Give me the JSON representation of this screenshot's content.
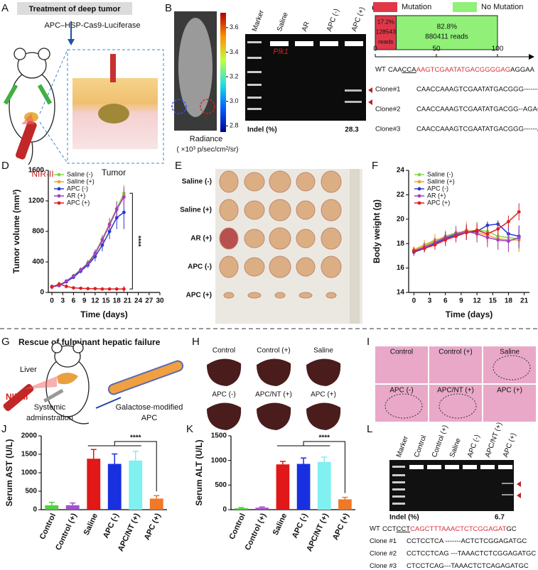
{
  "panel_labels": [
    "A",
    "B",
    "C",
    "D",
    "E",
    "F",
    "G",
    "H",
    "I",
    "J",
    "K",
    "L"
  ],
  "panel_a": {
    "title": "Treatment of deep tumor",
    "agent": "APC–HSP-Cas9-Luciferase",
    "tumor": "Tumor",
    "light": "NIR-II"
  },
  "panel_b": {
    "radiance": "Radiance",
    "radiance_unit": "( ×10³ p/sec/cm²/sr)",
    "colorbar": {
      "lim": [
        2.75,
        3.72
      ],
      "ticks": [
        3.6,
        3.4,
        3.2,
        {
          "value": 3,
          "label": "3.0"
        },
        2.8
      ]
    },
    "lanes": [
      "Marker",
      "Saline",
      "AR",
      "APC (-)",
      "APC (+)"
    ],
    "gene": "Plk1",
    "indel_label": "Indel (%)",
    "indel": "28.3"
  },
  "sequences_c": [
    {
      "label": "WT",
      "parts": [
        {
          "text": "CAA"
        },
        {
          "text": "CCA",
          "underline": true
        },
        {
          "text": "AAGTCGAATATGACGGGGAG",
          "color": "#d9303e"
        },
        {
          "text": "AGGAA"
        }
      ]
    },
    {
      "label": "Clone#1",
      "text": "CAACCAAAGTCGAATATGACGGG---------AA"
    },
    {
      "label": "Clone#2",
      "text": "CAACCAAAGTCGAATATGACGG--AGAGGAA"
    },
    {
      "label": "Clone#3",
      "text": "CAACCAAAGTCGAATATGACGGG------AAGAA"
    }
  ],
  "panel_e": {
    "rows": [
      "Saline (-)",
      "Saline (+)",
      "AR (+)",
      "APC (-)",
      "APC (+)"
    ]
  },
  "panel_g": {
    "title": "Rescue of fulminant hepatic failure",
    "organ": "Liver",
    "light": "NIR-II",
    "route": [
      "Systemic",
      "adminstration"
    ],
    "agent": [
      "Galactose-modified",
      "APC"
    ]
  },
  "panel_h": {
    "groups": [
      "Control",
      "Control (+)",
      "Saline",
      "APC (-)",
      "APC/NT (+)",
      "APC (+)"
    ]
  },
  "panel_i": {
    "groups": [
      "Control",
      "Control (+)",
      "Saline",
      "APC (-)",
      "APC/NT (+)",
      "APC (+)"
    ]
  },
  "panel_l": {
    "lanes": [
      "Marker",
      "Control",
      "Control (+)",
      "Saline",
      "APC (-)",
      "APC/NT (+)",
      "APC (+)"
    ],
    "indel_label": "Indel (%)",
    "indel": "6.7",
    "sequences": [
      {
        "label": "WT",
        "parts": [
          {
            "text": "CCT"
          },
          {
            "text": "CCT",
            "underline": true
          },
          {
            "text": "CAGCTTTAAACTCTCGGAGAT",
            "color": "#d9303e"
          },
          {
            "text": "GC"
          }
        ]
      },
      {
        "label": "Clone #1",
        "text": "CCTCCTCA -------ACTCTCGGAGATGC"
      },
      {
        "label": "Clone #2",
        "text": "CCTCCTCAG ---TAAACTCTCGGAGATGC"
      },
      {
        "label": "Clone #3",
        "text": "CTCCTCAG---TAAACTCTCAGAGATGC"
      }
    ]
  },
  "chart_data": [
    {
      "type": "stacked-bar",
      "xlim": [
        0,
        100
      ],
      "xticks": [
        0,
        50,
        100
      ],
      "count_unit": "reads",
      "series": [
        {
          "name": "Mutation",
          "color": "#e03848",
          "values": [
            17.2
          ],
          "value_labels": [
            "17.2%"
          ],
          "count": "128543"
        },
        {
          "name": "No Mutation",
          "color": "#90f078",
          "values": [
            82.8
          ],
          "value_labels": [
            "82.8%"
          ],
          "count": "880411"
        }
      ]
    },
    {
      "type": "line",
      "ylabel": "Tumor volume (mm³)",
      "xlabel": "Time (days)",
      "annotation": "****",
      "xlim": [
        -1,
        30
      ],
      "xticks": [
        0,
        3,
        6,
        9,
        12,
        15,
        18,
        21,
        24,
        27,
        30
      ],
      "ylim": [
        0,
        1600
      ],
      "yticks": [
        0,
        400,
        800,
        1200,
        1600
      ],
      "x": [
        0,
        2,
        4,
        6,
        8,
        10,
        12,
        14,
        16,
        18,
        20
      ],
      "series": [
        {
          "name": "Saline (-)",
          "color": "#80d848",
          "values": [
            80,
            95,
            150,
            220,
            300,
            390,
            520,
            700,
            900,
            1100,
            1300
          ],
          "errors": [
            10,
            15,
            20,
            25,
            30,
            40,
            50,
            60,
            80,
            100,
            110
          ]
        },
        {
          "name": "Saline (+)",
          "color": "#f0a030",
          "values": [
            80,
            95,
            145,
            210,
            290,
            370,
            500,
            680,
            880,
            1080,
            1270
          ],
          "errors": [
            10,
            15,
            20,
            25,
            30,
            40,
            50,
            70,
            90,
            100,
            120
          ]
        },
        {
          "name": "APC (-)",
          "color": "#2838d0",
          "values": [
            75,
            90,
            140,
            200,
            280,
            360,
            470,
            620,
            800,
            980,
            1050
          ],
          "errors": [
            10,
            15,
            20,
            25,
            30,
            40,
            60,
            80,
            100,
            150,
            220
          ]
        },
        {
          "name": "AR (+)",
          "color": "#a040c8",
          "values": [
            80,
            95,
            150,
            215,
            295,
            380,
            510,
            690,
            890,
            1090,
            1250
          ],
          "errors": [
            10,
            15,
            20,
            25,
            30,
            40,
            50,
            60,
            80,
            100,
            130
          ]
        },
        {
          "name": "APC (+)",
          "color": "#e02020",
          "values": [
            70,
            110,
            80,
            60,
            55,
            50,
            50,
            45,
            45,
            45,
            45
          ],
          "errors": [
            30,
            30,
            25,
            20,
            20,
            20,
            20,
            20,
            20,
            20,
            40
          ]
        }
      ]
    },
    {
      "type": "line",
      "ylabel": "Body weight (g)",
      "xlabel": "Time (days)",
      "xlim": [
        -1,
        22
      ],
      "xticks": [
        0,
        3,
        6,
        9,
        12,
        15,
        18,
        21
      ],
      "ylim": [
        14,
        24
      ],
      "yticks": [
        14,
        16,
        18,
        20,
        22,
        24
      ],
      "x": [
        0,
        2,
        4,
        6,
        8,
        10,
        12,
        14,
        16,
        18,
        20
      ],
      "series": [
        {
          "name": "Saline (-)",
          "color": "#80d848",
          "values": [
            17.4,
            17.8,
            18.2,
            18.6,
            18.9,
            19.0,
            19.1,
            19.0,
            18.6,
            18.5,
            18.4
          ],
          "errors": [
            0.3,
            0.4,
            0.5,
            0.5,
            0.6,
            0.6,
            0.7,
            0.8,
            0.9,
            0.9,
            1.0
          ]
        },
        {
          "name": "Saline (+)",
          "color": "#f0a030",
          "values": [
            17.5,
            17.9,
            18.3,
            18.5,
            18.8,
            19.1,
            18.9,
            18.7,
            18.4,
            18.3,
            18.3
          ],
          "errors": [
            0.3,
            0.4,
            0.5,
            0.5,
            0.6,
            0.7,
            0.8,
            0.8,
            0.9,
            1.0,
            1.0
          ]
        },
        {
          "name": "APC (-)",
          "color": "#2838d0",
          "values": [
            17.3,
            17.6,
            18.0,
            18.4,
            18.7,
            18.9,
            19.0,
            19.5,
            19.6,
            18.8,
            18.6
          ],
          "errors": [
            0.3,
            0.3,
            0.4,
            0.5,
            0.5,
            0.6,
            0.6,
            0.3,
            0.3,
            0.8,
            0.9
          ]
        },
        {
          "name": "AR (+)",
          "color": "#a040c8",
          "values": [
            17.4,
            17.7,
            18.1,
            18.5,
            18.8,
            19.0,
            18.8,
            18.5,
            18.3,
            18.2,
            18.5
          ],
          "errors": [
            0.3,
            0.4,
            0.4,
            0.5,
            0.6,
            0.6,
            0.7,
            0.8,
            0.8,
            0.9,
            0.9
          ]
        },
        {
          "name": "APC (+)",
          "color": "#e02020",
          "values": [
            17.4,
            17.6,
            17.9,
            18.3,
            18.6,
            18.9,
            19.1,
            18.8,
            19.2,
            19.8,
            20.6
          ],
          "errors": [
            0.3,
            0.3,
            0.4,
            0.5,
            0.5,
            0.6,
            0.6,
            0.7,
            0.6,
            0.5,
            0.7
          ]
        }
      ]
    },
    {
      "type": "bar",
      "ylabel": "Serum AST (U/L)",
      "annotation": "****",
      "categories": [
        "Control",
        "Control (+)",
        "Saline",
        "APC (-)",
        "APC/NT (+)",
        "APC (+)"
      ],
      "values": [
        120,
        120,
        1380,
        1240,
        1330,
        300
      ],
      "errors": [
        80,
        60,
        250,
        270,
        250,
        80
      ],
      "colors": [
        "#50d040",
        "#a050d0",
        "#e01818",
        "#1830e0",
        "#80f0f0",
        "#f07828"
      ],
      "ylim": [
        0,
        2000
      ],
      "yticks": [
        0,
        500,
        1000,
        1500,
        2000
      ]
    },
    {
      "type": "bar",
      "ylabel": "Serum ALT (U/L)",
      "annotation": "****",
      "categories": [
        "Control",
        "Control (+)",
        "Saline",
        "APC (-)",
        "APC/NT (+)",
        "APC (+)"
      ],
      "values": [
        30,
        40,
        920,
        930,
        970,
        210
      ],
      "errors": [
        15,
        15,
        60,
        120,
        100,
        40
      ],
      "colors": [
        "#50d040",
        "#a050d0",
        "#e01818",
        "#1830e0",
        "#80f0f0",
        "#f07828"
      ],
      "ylim": [
        0,
        1500
      ],
      "yticks": [
        0,
        500,
        1000,
        1500
      ]
    }
  ]
}
